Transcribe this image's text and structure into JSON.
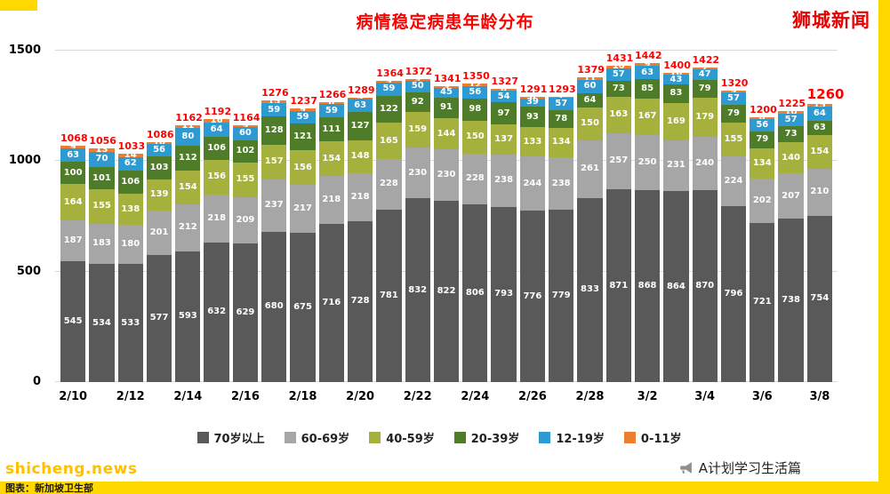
{
  "header": {
    "title": "病情稳定病患年龄分布",
    "brand": "狮城新闻"
  },
  "watermark": "shicheng.news",
  "footer": {
    "caption": "图表：新加坡卫生部",
    "credit": "A计划学习生活篇"
  },
  "colors": {
    "accent_yellow": "#ffd800",
    "watermark_yellow": "#ffc000",
    "title_red": "#ff0000",
    "total_label_red": "#ff0000"
  },
  "chart_data": {
    "type": "bar",
    "stacked": true,
    "title": "病情稳定病患年龄分布",
    "xlabel": "",
    "ylabel": "",
    "ylim": [
      0,
      1500
    ],
    "yticks": [
      0,
      500,
      1000,
      1500
    ],
    "grid": true,
    "legend_position": "bottom",
    "categories": [
      "2/10",
      "2/11",
      "2/12",
      "2/13",
      "2/14",
      "2/15",
      "2/16",
      "2/17",
      "2/18",
      "2/19",
      "2/20",
      "2/21",
      "2/22",
      "2/23",
      "2/24",
      "2/25",
      "2/26",
      "2/27",
      "2/28",
      "3/1",
      "3/2",
      "3/3",
      "3/4",
      "3/5",
      "3/6",
      "3/7",
      "3/8"
    ],
    "x_tick_labels": [
      "2/10",
      "2/12",
      "2/14",
      "2/16",
      "2/18",
      "2/20",
      "2/22",
      "2/24",
      "2/26",
      "2/28",
      "3/2",
      "3/4",
      "3/6",
      "3/8"
    ],
    "series": [
      {
        "name": "70岁以上",
        "color": "#595959",
        "values": [
          545,
          534,
          533,
          577,
          593,
          632,
          629,
          680,
          675,
          716,
          728,
          781,
          832,
          822,
          806,
          793,
          776,
          779,
          833,
          871,
          868,
          864,
          870,
          796,
          721,
          738,
          754
        ]
      },
      {
        "name": "60-69岁",
        "color": "#a6a6a6",
        "values": [
          187,
          183,
          180,
          201,
          212,
          218,
          209,
          237,
          217,
          218,
          218,
          228,
          230,
          230,
          228,
          238,
          244,
          238,
          261,
          257,
          250,
          231,
          240,
          224,
          202,
          207,
          210
        ]
      },
      {
        "name": "40-59岁",
        "color": "#a5b13c",
        "values": [
          164,
          155,
          138,
          139,
          154,
          156,
          155,
          157,
          156,
          154,
          148,
          165,
          159,
          144,
          150,
          137,
          133,
          134,
          150,
          163,
          167,
          169,
          179,
          155,
          134,
          140,
          154
        ]
      },
      {
        "name": "20-39岁",
        "color": "#4e7c28",
        "values": [
          100,
          101,
          106,
          103,
          112,
          106,
          102,
          128,
          121,
          111,
          127,
          122,
          92,
          91,
          98,
          97,
          93,
          78,
          64,
          73,
          85,
          83,
          79,
          79,
          79,
          73,
          63
        ]
      },
      {
        "name": "12-19岁",
        "color": "#2e9ad2",
        "values": [
          63,
          70,
          62,
          56,
          80,
          64,
          60,
          59,
          59,
          59,
          63,
          59,
          50,
          45,
          56,
          54,
          39,
          57,
          60,
          57,
          63,
          43,
          47,
          57,
          56,
          57,
          64
        ]
      },
      {
        "name": "0-11岁",
        "color": "#ed7d31",
        "values": [
          9,
          13,
          14,
          10,
          11,
          16,
          9,
          15,
          9,
          8,
          5,
          9,
          9,
          9,
          12,
          8,
          6,
          7,
          11,
          10,
          9,
          10,
          7,
          9,
          8,
          10,
          15
        ]
      }
    ],
    "totals": [
      1068,
      1056,
      1033,
      1086,
      1162,
      1192,
      1164,
      1276,
      1237,
      1266,
      1289,
      1364,
      1372,
      1341,
      1350,
      1327,
      1291,
      1293,
      1379,
      1431,
      1442,
      1400,
      1422,
      1320,
      1200,
      1225,
      1260
    ]
  }
}
